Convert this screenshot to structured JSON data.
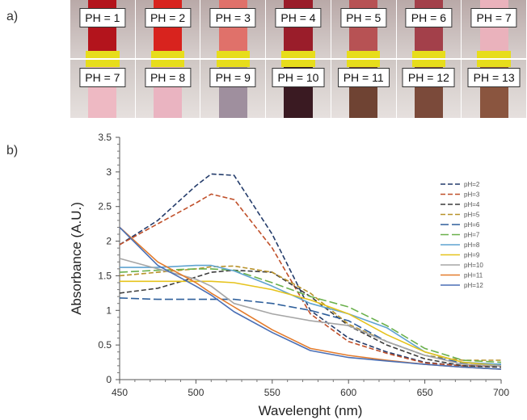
{
  "panel_labels": {
    "a": "a)",
    "b": "b)"
  },
  "photo_strip": {
    "rows": [
      [
        {
          "label": "PH = 1",
          "color": "#b3141c"
        },
        {
          "label": "PH = 2",
          "color": "#d8231e"
        },
        {
          "label": "PH = 3",
          "color": "#e0716a"
        },
        {
          "label": "PH = 4",
          "color": "#9a1d2a"
        },
        {
          "label": "PH = 5",
          "color": "#b75254"
        },
        {
          "label": "PH = 6",
          "color": "#a3404a"
        },
        {
          "label": "PH = 7",
          "color": "#eab2bc"
        }
      ],
      [
        {
          "label": "PH = 7",
          "color": "#eeb9c3"
        },
        {
          "label": "PH = 8",
          "color": "#eab4c1"
        },
        {
          "label": "PH = 9",
          "color": "#9f8f9e"
        },
        {
          "label": "PH = 10",
          "color": "#3a1a22"
        },
        {
          "label": "PH = 11",
          "color": "#6f4333"
        },
        {
          "label": "PH = 12",
          "color": "#7b4a3a"
        },
        {
          "label": "PH = 13",
          "color": "#8a553f"
        }
      ]
    ],
    "band_color": "#e7dd1b"
  },
  "chart_data": {
    "type": "line",
    "title": "",
    "xlabel": "Wavelenght (nm)",
    "ylabel": "Absorbance (A.U.)",
    "xlim": [
      450,
      700
    ],
    "ylim": [
      0,
      3.5
    ],
    "xticks": [
      450,
      500,
      550,
      600,
      650,
      700
    ],
    "xtick_labels": [
      "450",
      "500",
      "550",
      "600",
      "650",
      "700"
    ],
    "yticks": [
      0,
      0.5,
      1,
      1.5,
      2,
      2.5,
      3,
      3.5
    ],
    "ytick_labels": [
      "0",
      "0.5",
      "1",
      "1.5",
      "2",
      "2.5",
      "3",
      "3.5"
    ],
    "grid": false,
    "legend_position": "right",
    "x": [
      450,
      475,
      500,
      510,
      525,
      550,
      575,
      600,
      625,
      650,
      675,
      700
    ],
    "series": [
      {
        "name": "pH=2",
        "color": "#243c6b",
        "dash": "6,3",
        "values": [
          1.95,
          2.3,
          2.8,
          2.97,
          2.95,
          2.1,
          1.0,
          0.6,
          0.4,
          0.25,
          0.2,
          0.2
        ]
      },
      {
        "name": "pH=3",
        "color": "#c0502a",
        "dash": "6,3",
        "values": [
          1.95,
          2.25,
          2.55,
          2.68,
          2.6,
          1.9,
          0.95,
          0.55,
          0.38,
          0.24,
          0.2,
          0.2
        ]
      },
      {
        "name": "pH=4",
        "color": "#3c3c3c",
        "dash": "6,3",
        "values": [
          1.25,
          1.32,
          1.48,
          1.55,
          1.58,
          1.55,
          1.2,
          0.78,
          0.5,
          0.3,
          0.2,
          0.18
        ]
      },
      {
        "name": "pH=5",
        "color": "#b8922a",
        "dash": "6,3",
        "values": [
          1.5,
          1.55,
          1.6,
          1.63,
          1.64,
          1.55,
          1.25,
          0.8,
          0.55,
          0.35,
          0.28,
          0.28
        ]
      },
      {
        "name": "pH=6",
        "color": "#2e5f9b",
        "dash": "10,4",
        "values": [
          1.18,
          1.16,
          1.16,
          1.16,
          1.16,
          1.1,
          1.0,
          0.85,
          0.55,
          0.35,
          0.24,
          0.22
        ]
      },
      {
        "name": "pH=7",
        "color": "#6ab04c",
        "dash": "10,4",
        "values": [
          1.55,
          1.58,
          1.6,
          1.6,
          1.58,
          1.4,
          1.2,
          1.05,
          0.78,
          0.45,
          0.28,
          0.25
        ]
      },
      {
        "name": "pH=8",
        "color": "#5fa3d0",
        "dash": "",
        "values": [
          1.62,
          1.62,
          1.65,
          1.65,
          1.57,
          1.35,
          1.1,
          0.95,
          0.75,
          0.4,
          0.25,
          0.22
        ]
      },
      {
        "name": "pH=9",
        "color": "#e6c31c",
        "dash": "",
        "values": [
          1.42,
          1.42,
          1.42,
          1.42,
          1.4,
          1.3,
          1.15,
          0.95,
          0.65,
          0.4,
          0.25,
          0.2
        ]
      },
      {
        "name": "pH=10",
        "color": "#a6a6a6",
        "dash": "",
        "values": [
          1.75,
          1.6,
          1.45,
          1.35,
          1.1,
          0.95,
          0.85,
          0.78,
          0.55,
          0.35,
          0.22,
          0.2
        ]
      },
      {
        "name": "pH=11",
        "color": "#e37b2c",
        "dash": "",
        "values": [
          2.2,
          1.7,
          1.4,
          1.25,
          1.05,
          0.72,
          0.45,
          0.35,
          0.28,
          0.22,
          0.18,
          0.15
        ]
      },
      {
        "name": "pH=12",
        "color": "#4a6fb5",
        "dash": "",
        "values": [
          2.2,
          1.65,
          1.35,
          1.22,
          0.98,
          0.68,
          0.42,
          0.32,
          0.27,
          0.22,
          0.18,
          0.15
        ]
      }
    ]
  }
}
